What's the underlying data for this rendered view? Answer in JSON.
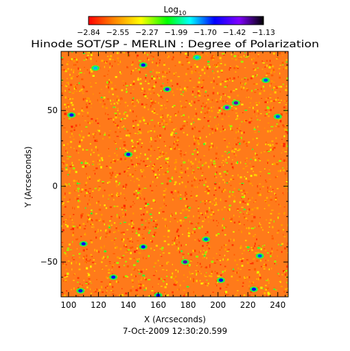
{
  "chart_data": {
    "type": "heatmap",
    "title": "Hinode SOT/SP - MERLIN : Degree of Polarization",
    "colorbar": {
      "label_base": "Log",
      "label_sub": "10",
      "ticks": [
        "-2.84",
        "-2.55",
        "-2.27",
        "-1.99",
        "-1.70",
        "-1.42",
        "-1.13"
      ],
      "range": [
        -2.84,
        -1.13
      ],
      "colormap": [
        "#ff0000",
        "#ff8000",
        "#ffff00",
        "#00ff00",
        "#00ffff",
        "#0000ff",
        "#8000ff",
        "#000000"
      ]
    },
    "xlabel": "X (Arcseconds)",
    "ylabel": "Y (Arcseconds)",
    "xlim": [
      95,
      247
    ],
    "ylim": [
      -73,
      89
    ],
    "x_ticks": [
      {
        "value": 100,
        "label": "100"
      },
      {
        "value": 120,
        "label": "120"
      },
      {
        "value": 140,
        "label": "140"
      },
      {
        "value": 160,
        "label": "160"
      },
      {
        "value": 180,
        "label": "180"
      },
      {
        "value": 200,
        "label": "200"
      },
      {
        "value": 220,
        "label": "220"
      },
      {
        "value": 240,
        "label": "240"
      }
    ],
    "y_ticks": [
      {
        "value": -50,
        "label": "−50"
      },
      {
        "value": 0,
        "label": "0"
      },
      {
        "value": 50,
        "label": "50"
      }
    ],
    "dominant_level": -2.6,
    "patches": [
      {
        "x": 212,
        "y": 55,
        "level": -1.3
      },
      {
        "x": 206,
        "y": 52,
        "level": -1.4
      },
      {
        "x": 178,
        "y": -50,
        "level": -1.3
      },
      {
        "x": 102,
        "y": 47,
        "level": -1.6
      },
      {
        "x": 110,
        "y": -38,
        "level": -1.6
      },
      {
        "x": 166,
        "y": 64,
        "level": -1.5
      },
      {
        "x": 140,
        "y": 21,
        "level": -1.6
      },
      {
        "x": 150,
        "y": -40,
        "level": -1.6
      },
      {
        "x": 130,
        "y": -60,
        "level": -1.6
      },
      {
        "x": 150,
        "y": 80,
        "level": -1.6
      },
      {
        "x": 232,
        "y": 70,
        "level": -1.7
      },
      {
        "x": 108,
        "y": -69,
        "level": -1.6
      },
      {
        "x": 160,
        "y": -72,
        "level": -1.6
      },
      {
        "x": 224,
        "y": -68,
        "level": -1.6
      },
      {
        "x": 240,
        "y": 46,
        "level": -1.7
      },
      {
        "x": 192,
        "y": -35,
        "level": -1.7
      },
      {
        "x": 202,
        "y": -62,
        "level": -1.6
      },
      {
        "x": 228,
        "y": -46,
        "level": -1.7
      },
      {
        "x": 186,
        "y": 85,
        "level": -1.8
      },
      {
        "x": 118,
        "y": 78,
        "level": -1.8
      }
    ]
  },
  "footer": {
    "date": "7-Oct-2009 12:30:20.599"
  }
}
